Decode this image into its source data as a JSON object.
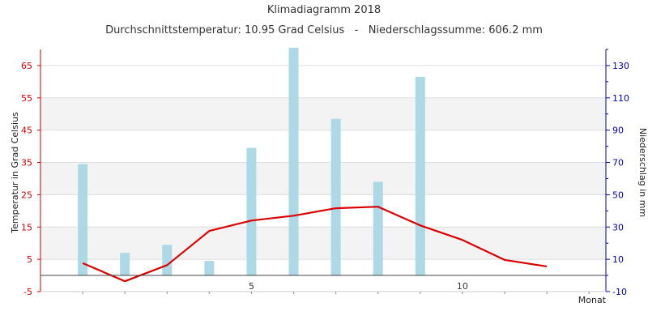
{
  "chart_data": {
    "type": "bar+line",
    "title": "Klimadiagramm 2018",
    "subtitle": "Durchschnittstemperatur: 10.95 Grad Celsius   -   Niederschlagssumme: 606.2 mm",
    "xlabel": "Monat",
    "ylabel_left": "Temperatur in Grad Celsius",
    "ylabel_right": "Niederschlag in mm",
    "x": [
      1,
      2,
      3,
      4,
      5,
      6,
      7,
      8,
      9,
      10,
      11,
      12
    ],
    "x_ticks": [
      "5",
      "10"
    ],
    "x_tick_values": [
      5,
      10
    ],
    "xlim": [
      0,
      13.4
    ],
    "ylim_left": [
      -5,
      70
    ],
    "ylim_right": [
      -10,
      140
    ],
    "yticks_left": [
      "-5",
      "5",
      "15",
      "25",
      "35",
      "45",
      "55",
      "65"
    ],
    "yticks_right": [
      "-10",
      "10",
      "30",
      "50",
      "70",
      "90",
      "110",
      "130"
    ],
    "grid": true,
    "series": [
      {
        "type": "bar",
        "axis": "right",
        "color": "#add8e6",
        "values": [
          69,
          14,
          19,
          9,
          79,
          141,
          97,
          58,
          123,
          0,
          0,
          0
        ]
      },
      {
        "type": "line",
        "axis": "left",
        "color": "#dd0000",
        "values": [
          3.8,
          -1.8,
          3.2,
          13.8,
          17.0,
          18.5,
          20.8,
          21.3,
          15.5,
          11.0,
          4.8,
          2.8
        ]
      }
    ]
  }
}
